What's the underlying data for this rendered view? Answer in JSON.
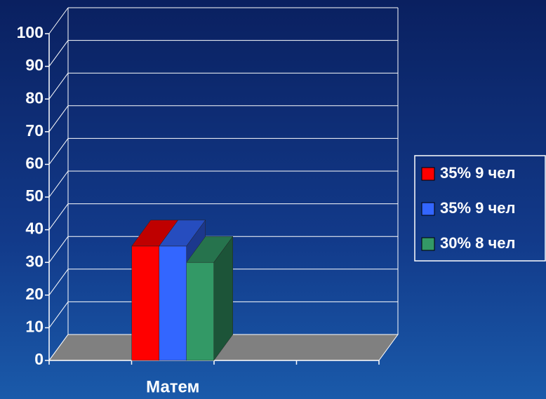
{
  "chart_data": {
    "type": "bar3d",
    "categories": [
      "Матем"
    ],
    "series": [
      {
        "name": "35% 9 чел",
        "color": "#ff0000",
        "values": [
          35
        ]
      },
      {
        "name": "35% 9 чел",
        "color": "#3366ff",
        "values": [
          35
        ]
      },
      {
        "name": "30% 8 чел",
        "color": "#339966",
        "values": [
          30
        ]
      }
    ],
    "ylim": [
      0,
      100
    ],
    "yticks": [
      0,
      10,
      20,
      30,
      40,
      50,
      60,
      70,
      80,
      90,
      100
    ],
    "grid": true,
    "legend": "right"
  }
}
